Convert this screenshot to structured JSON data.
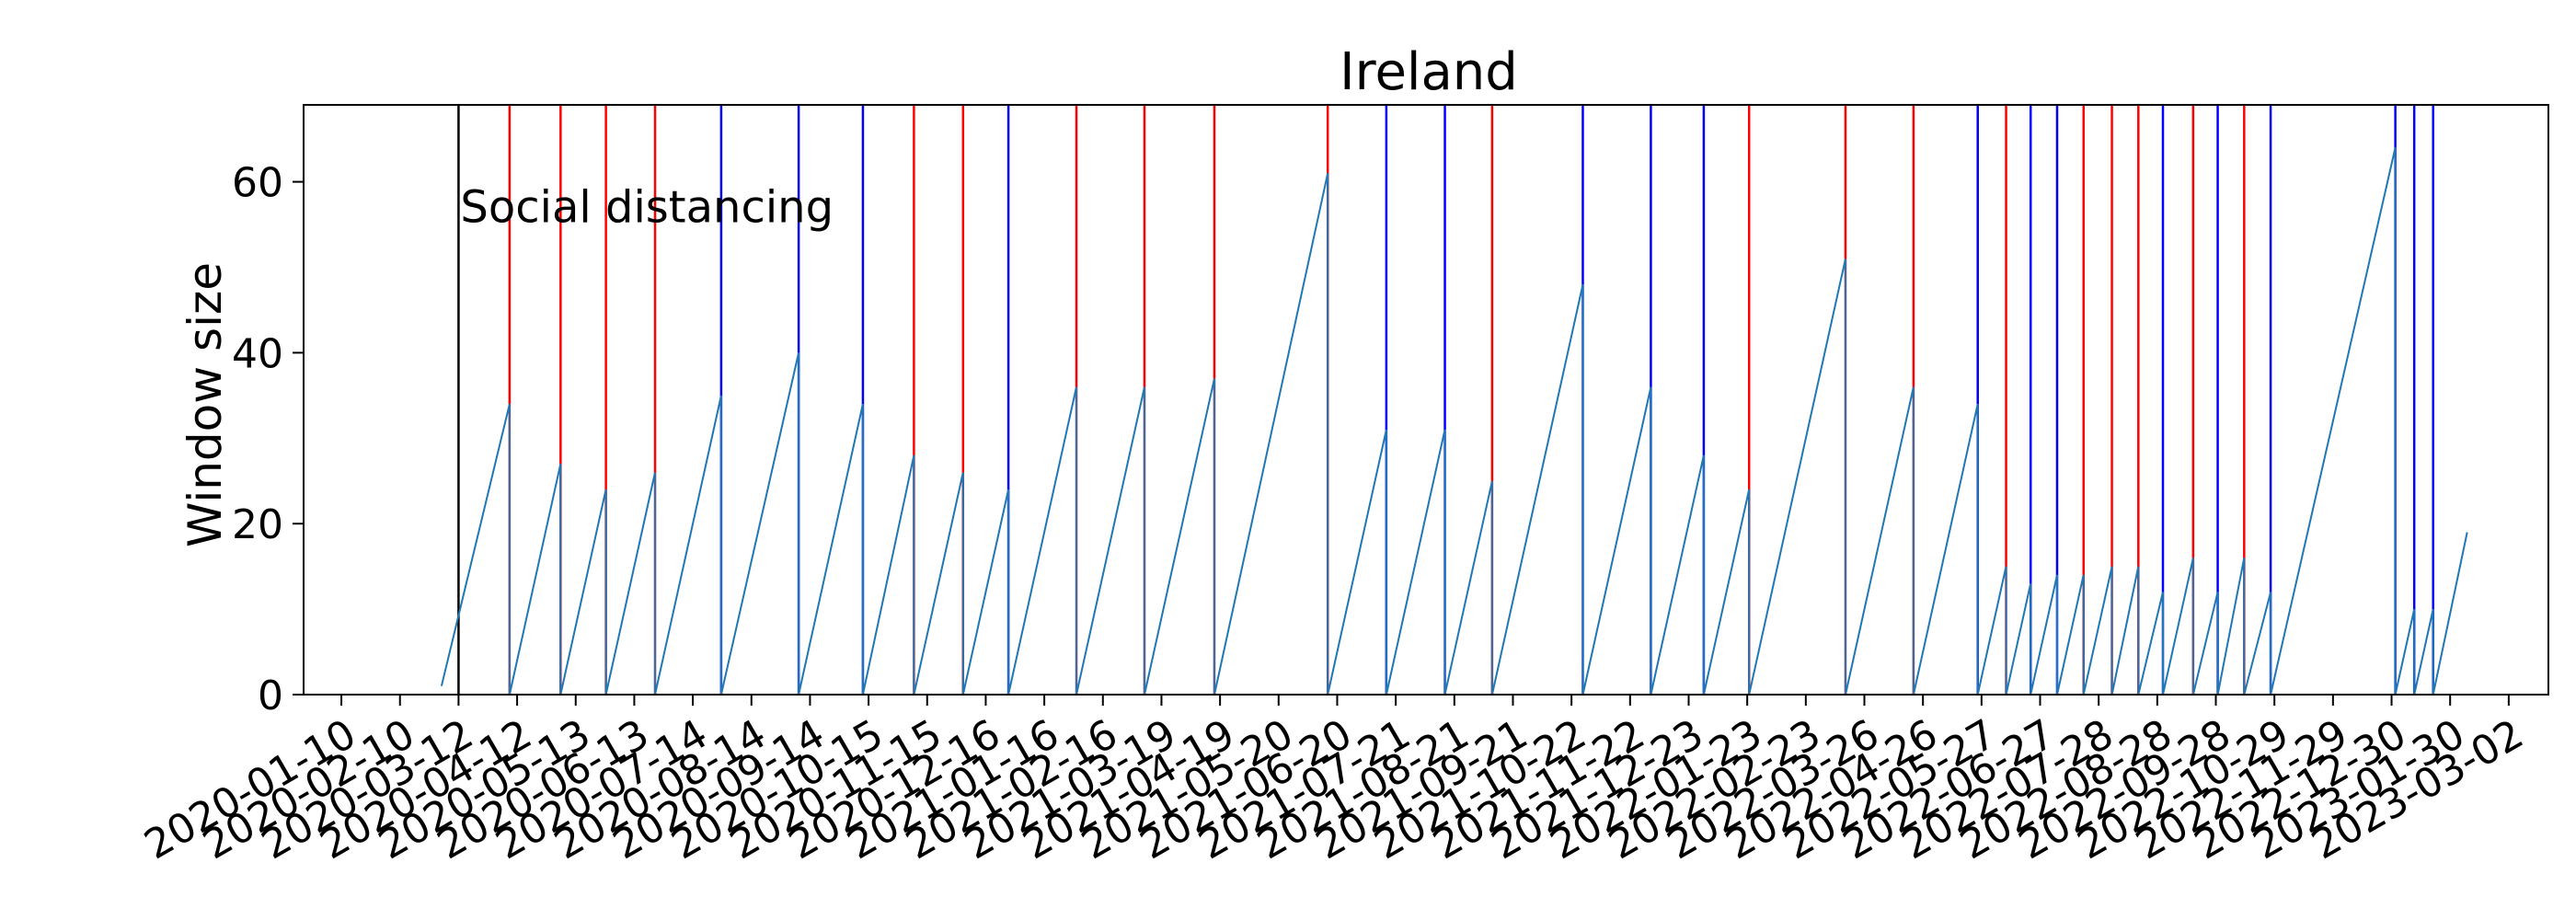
{
  "chart_data": {
    "type": "line",
    "title": "Ireland",
    "xlabel": "",
    "ylabel": "Window size",
    "ylim": [
      0,
      69
    ],
    "xlim": [
      "2019-12-21",
      "2023-03-23"
    ],
    "y_ticks": [
      0,
      20,
      40,
      60
    ],
    "x_tick_labels": [
      "2020-01-10",
      "2020-02-10",
      "2020-03-12",
      "2020-04-12",
      "2020-05-13",
      "2020-06-13",
      "2020-07-14",
      "2020-08-14",
      "2020-09-14",
      "2020-10-15",
      "2020-11-15",
      "2020-12-16",
      "2021-01-16",
      "2021-02-16",
      "2021-03-19",
      "2021-04-19",
      "2021-05-20",
      "2021-06-20",
      "2021-07-21",
      "2021-08-21",
      "2021-09-21",
      "2021-10-22",
      "2021-11-22",
      "2021-12-23",
      "2022-01-23",
      "2022-02-23",
      "2022-03-26",
      "2022-04-26",
      "2022-05-27",
      "2022-06-27",
      "2022-07-28",
      "2022-08-28",
      "2022-09-28",
      "2022-10-29",
      "2022-11-29",
      "2022-12-30",
      "2023-01-30",
      "2023-03-02"
    ],
    "series": [
      {
        "color": "#1f77b4",
        "points": [
          [
            "2020-03-03",
            1
          ],
          [
            "2020-04-08",
            34
          ],
          [
            "2020-04-08",
            0
          ],
          [
            "2020-05-05",
            27
          ],
          [
            "2020-05-05",
            0
          ],
          [
            "2020-05-29",
            24
          ],
          [
            "2020-05-29",
            0
          ],
          [
            "2020-06-24",
            26
          ],
          [
            "2020-06-24",
            0
          ],
          [
            "2020-07-29",
            35
          ],
          [
            "2020-07-29",
            0
          ],
          [
            "2020-09-08",
            40
          ],
          [
            "2020-09-08",
            0
          ],
          [
            "2020-10-12",
            34
          ],
          [
            "2020-10-12",
            0
          ],
          [
            "2020-11-08",
            28
          ],
          [
            "2020-11-08",
            0
          ],
          [
            "2020-12-04",
            26
          ],
          [
            "2020-12-04",
            0
          ],
          [
            "2020-12-28",
            24
          ],
          [
            "2020-12-28",
            0
          ],
          [
            "2021-02-02",
            36
          ],
          [
            "2021-02-02",
            0
          ],
          [
            "2021-03-10",
            36
          ],
          [
            "2021-03-10",
            0
          ],
          [
            "2021-04-16",
            37
          ],
          [
            "2021-04-16",
            0
          ],
          [
            "2021-06-15",
            61
          ],
          [
            "2021-06-15",
            0
          ],
          [
            "2021-07-16",
            31
          ],
          [
            "2021-07-16",
            0
          ],
          [
            "2021-08-16",
            31
          ],
          [
            "2021-08-16",
            0
          ],
          [
            "2021-09-10",
            25
          ],
          [
            "2021-09-10",
            0
          ],
          [
            "2021-10-28",
            48
          ],
          [
            "2021-10-28",
            0
          ],
          [
            "2021-12-03",
            36
          ],
          [
            "2021-12-03",
            0
          ],
          [
            "2021-12-31",
            28
          ],
          [
            "2021-12-31",
            0
          ],
          [
            "2022-01-24",
            24
          ],
          [
            "2022-01-24",
            0
          ],
          [
            "2022-03-16",
            51
          ],
          [
            "2022-03-16",
            0
          ],
          [
            "2022-04-21",
            36
          ],
          [
            "2022-04-21",
            0
          ],
          [
            "2022-05-25",
            34
          ],
          [
            "2022-05-25",
            0
          ],
          [
            "2022-06-09",
            15
          ],
          [
            "2022-06-09",
            0
          ],
          [
            "2022-06-22",
            13
          ],
          [
            "2022-06-22",
            0
          ],
          [
            "2022-07-06",
            14
          ],
          [
            "2022-07-06",
            0
          ],
          [
            "2022-07-20",
            14
          ],
          [
            "2022-07-20",
            0
          ],
          [
            "2022-08-04",
            15
          ],
          [
            "2022-08-04",
            0
          ],
          [
            "2022-08-18",
            15
          ],
          [
            "2022-08-18",
            0
          ],
          [
            "2022-08-31",
            12
          ],
          [
            "2022-08-31",
            0
          ],
          [
            "2022-09-16",
            16
          ],
          [
            "2022-09-16",
            0
          ],
          [
            "2022-09-29",
            12
          ],
          [
            "2022-09-29",
            0
          ],
          [
            "2022-10-13",
            16
          ],
          [
            "2022-10-13",
            0
          ],
          [
            "2022-10-27",
            12
          ],
          [
            "2022-10-27",
            0
          ],
          [
            "2023-01-01",
            64
          ],
          [
            "2023-01-01",
            0
          ],
          [
            "2023-01-11",
            10
          ],
          [
            "2023-01-11",
            0
          ],
          [
            "2023-01-21",
            10
          ],
          [
            "2023-01-21",
            0
          ],
          [
            "2023-02-08",
            19
          ]
        ]
      }
    ],
    "vertical_lines": [
      {
        "date": "2020-03-12",
        "color": "#000000"
      },
      {
        "date": "2020-04-08",
        "color": "#ff0000"
      },
      {
        "date": "2020-05-05",
        "color": "#ff0000"
      },
      {
        "date": "2020-05-29",
        "color": "#ff0000"
      },
      {
        "date": "2020-06-24",
        "color": "#ff0000"
      },
      {
        "date": "2020-07-29",
        "color": "#0000ff"
      },
      {
        "date": "2020-09-08",
        "color": "#0000ff"
      },
      {
        "date": "2020-10-12",
        "color": "#0000ff"
      },
      {
        "date": "2020-11-08",
        "color": "#ff0000"
      },
      {
        "date": "2020-12-04",
        "color": "#ff0000"
      },
      {
        "date": "2020-12-28",
        "color": "#0000ff"
      },
      {
        "date": "2021-02-02",
        "color": "#ff0000"
      },
      {
        "date": "2021-03-10",
        "color": "#ff0000"
      },
      {
        "date": "2021-04-16",
        "color": "#ff0000"
      },
      {
        "date": "2021-06-15",
        "color": "#ff0000"
      },
      {
        "date": "2021-07-16",
        "color": "#0000ff"
      },
      {
        "date": "2021-08-16",
        "color": "#0000ff"
      },
      {
        "date": "2021-09-10",
        "color": "#ff0000"
      },
      {
        "date": "2021-10-28",
        "color": "#0000ff"
      },
      {
        "date": "2021-12-03",
        "color": "#0000ff"
      },
      {
        "date": "2021-12-31",
        "color": "#0000ff"
      },
      {
        "date": "2022-01-24",
        "color": "#ff0000"
      },
      {
        "date": "2022-03-16",
        "color": "#ff0000"
      },
      {
        "date": "2022-04-21",
        "color": "#ff0000"
      },
      {
        "date": "2022-05-25",
        "color": "#0000ff"
      },
      {
        "date": "2022-06-09",
        "color": "#ff0000"
      },
      {
        "date": "2022-06-22",
        "color": "#0000ff"
      },
      {
        "date": "2022-07-06",
        "color": "#0000ff"
      },
      {
        "date": "2022-07-20",
        "color": "#ff0000"
      },
      {
        "date": "2022-08-04",
        "color": "#ff0000"
      },
      {
        "date": "2022-08-18",
        "color": "#ff0000"
      },
      {
        "date": "2022-08-31",
        "color": "#0000ff"
      },
      {
        "date": "2022-09-16",
        "color": "#ff0000"
      },
      {
        "date": "2022-09-29",
        "color": "#0000ff"
      },
      {
        "date": "2022-10-13",
        "color": "#ff0000"
      },
      {
        "date": "2022-10-27",
        "color": "#0000ff"
      },
      {
        "date": "2023-01-01",
        "color": "#0000ff"
      },
      {
        "date": "2023-01-11",
        "color": "#0000ff"
      },
      {
        "date": "2023-01-21",
        "color": "#0000ff"
      }
    ],
    "annotations": [
      {
        "text": "Social distancing",
        "date": "2020-03-12",
        "y": 57
      }
    ],
    "grid": false,
    "legend": "none"
  }
}
